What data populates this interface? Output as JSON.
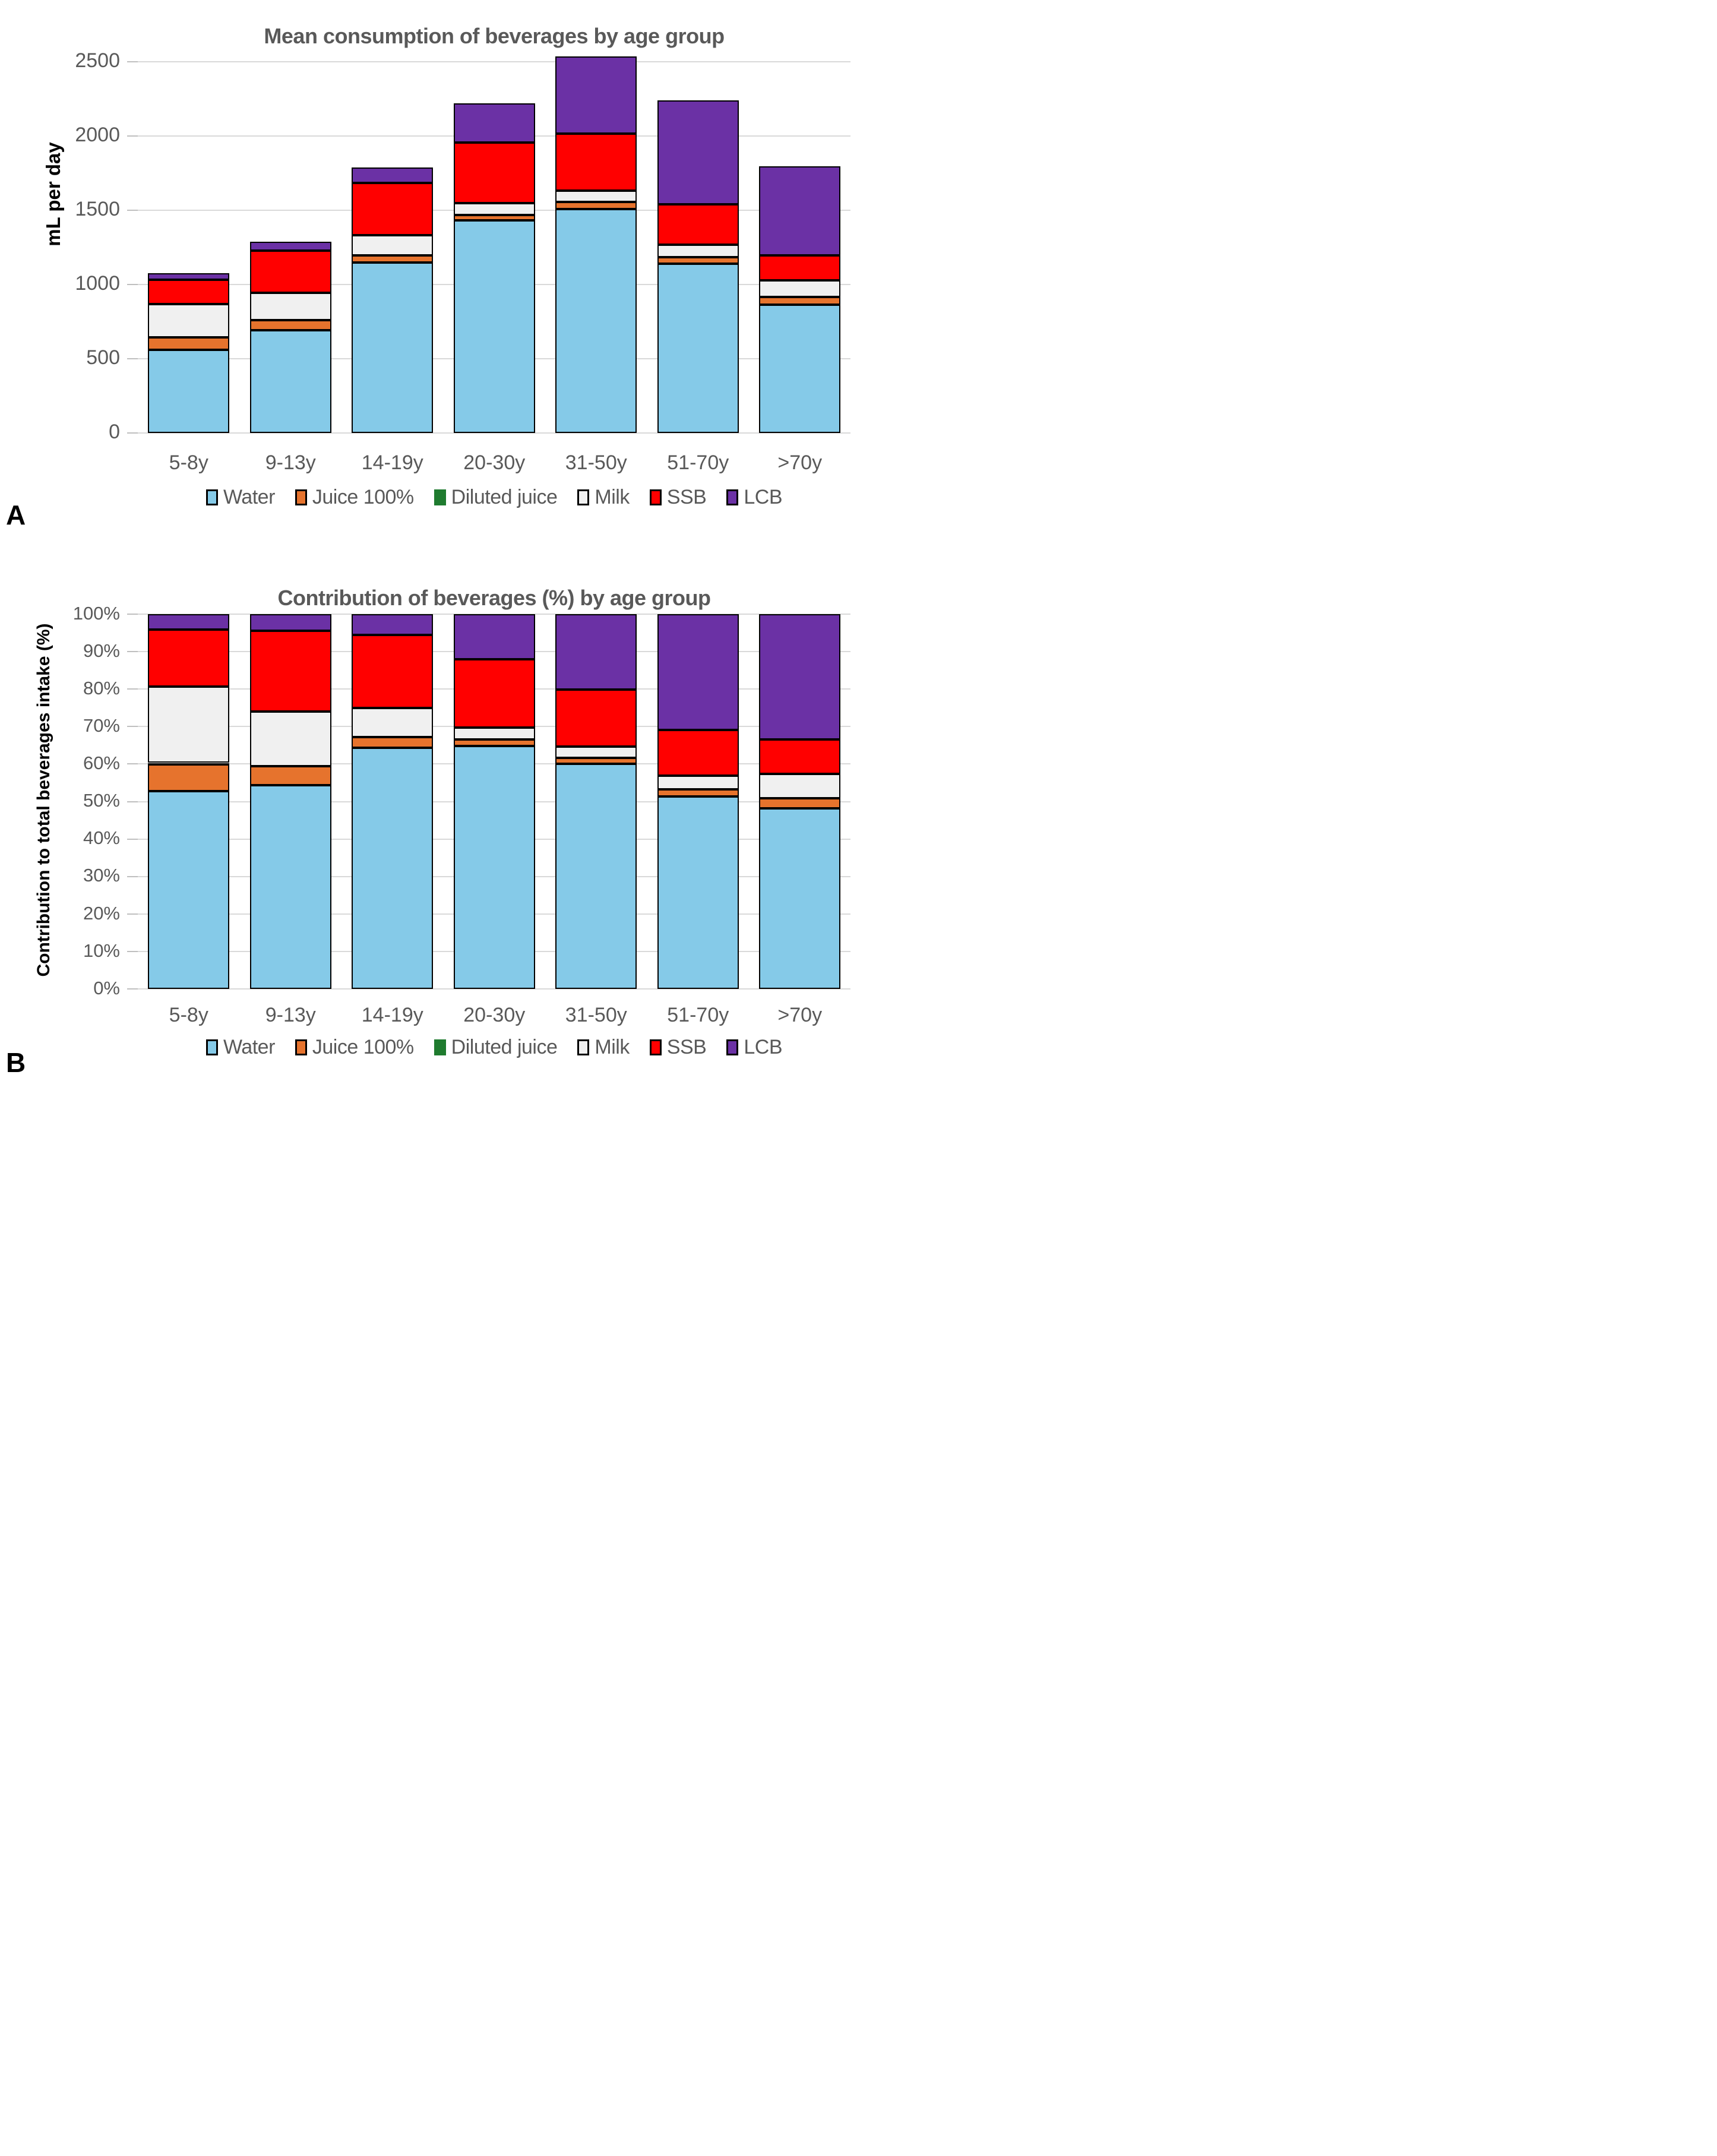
{
  "figure": {
    "background": "#ffffff",
    "text_gray": "#595959",
    "gridline_color": "#d9d9d9",
    "bar_border_color": "#000000"
  },
  "chart_data": [
    {
      "id": "panel-a",
      "panel_label": "A",
      "type": "bar",
      "stacked": true,
      "title": "Mean consumption of beverages by age group",
      "ylabel": "mL per day",
      "xlabel": "",
      "ylim": [
        0,
        2500
      ],
      "yticks": [
        0,
        500,
        1000,
        1500,
        2000,
        2500
      ],
      "ytick_suffix": "",
      "grid": true,
      "legend_position": "bottom",
      "categories": [
        "5-8y",
        "9-13y",
        "14-19y",
        "20-30y",
        "31-50y",
        "51-70y",
        ">70y"
      ],
      "series": [
        {
          "name": "Water",
          "color": "#85CAE8",
          "values": [
            560,
            692,
            1150,
            1432,
            1510,
            1139,
            865
          ]
        },
        {
          "name": "Juice 100%",
          "color": "#E6732D",
          "values": [
            85,
            70,
            46,
            38,
            45,
            44,
            52
          ]
        },
        {
          "name": "Diluted juice",
          "color": "#1F7B2F",
          "values": [
            0,
            0,
            0,
            0,
            0,
            0,
            0
          ]
        },
        {
          "name": "Milk",
          "color": "#F0F0F0",
          "values": [
            222,
            182,
            135,
            80,
            76,
            85,
            112
          ]
        },
        {
          "name": "SSB",
          "color": "#FF0000",
          "values": [
            165,
            285,
            353,
            406,
            384,
            272,
            169
          ]
        },
        {
          "name": "LCB",
          "color": "#6B31A5",
          "values": [
            45,
            58,
            106,
            265,
            520,
            702,
            597
          ]
        }
      ]
    },
    {
      "id": "panel-b",
      "panel_label": "B",
      "type": "bar",
      "stacked": true,
      "percent": true,
      "title": "Contribution of beverages (%) by age group",
      "ylabel": "Contribution to total beverages intake (%)",
      "xlabel": "",
      "ylim": [
        0,
        100
      ],
      "yticks": [
        0,
        10,
        20,
        30,
        40,
        50,
        60,
        70,
        80,
        90,
        100
      ],
      "ytick_suffix": "%",
      "grid": true,
      "legend_position": "bottom",
      "categories": [
        "5-8y",
        "9-13y",
        "14-19y",
        "20-30y",
        "31-50y",
        "51-70y",
        ">70y"
      ],
      "series": [
        {
          "name": "Water",
          "color": "#85CAE8",
          "values": [
            52.7,
            54.4,
            64.4,
            64.8,
            60.0,
            51.3,
            48.1
          ]
        },
        {
          "name": "Juice 100%",
          "color": "#E6732D",
          "values": [
            7.3,
            5.0,
            2.8,
            1.8,
            1.6,
            1.9,
            2.8
          ]
        },
        {
          "name": "Diluted juice",
          "color": "#1F7B2F",
          "values": [
            0.3,
            0,
            0,
            0,
            0,
            0,
            0
          ]
        },
        {
          "name": "Milk",
          "color": "#F0F0F0",
          "values": [
            20.3,
            14.6,
            7.7,
            3.2,
            3.0,
            3.7,
            6.4
          ]
        },
        {
          "name": "SSB",
          "color": "#FF0000",
          "values": [
            15.3,
            21.6,
            19.5,
            18.2,
            15.2,
            12.2,
            9.3
          ]
        },
        {
          "name": "LCB",
          "color": "#6B31A5",
          "values": [
            4.1,
            4.4,
            5.6,
            12.0,
            20.2,
            30.9,
            33.4
          ]
        }
      ]
    }
  ]
}
